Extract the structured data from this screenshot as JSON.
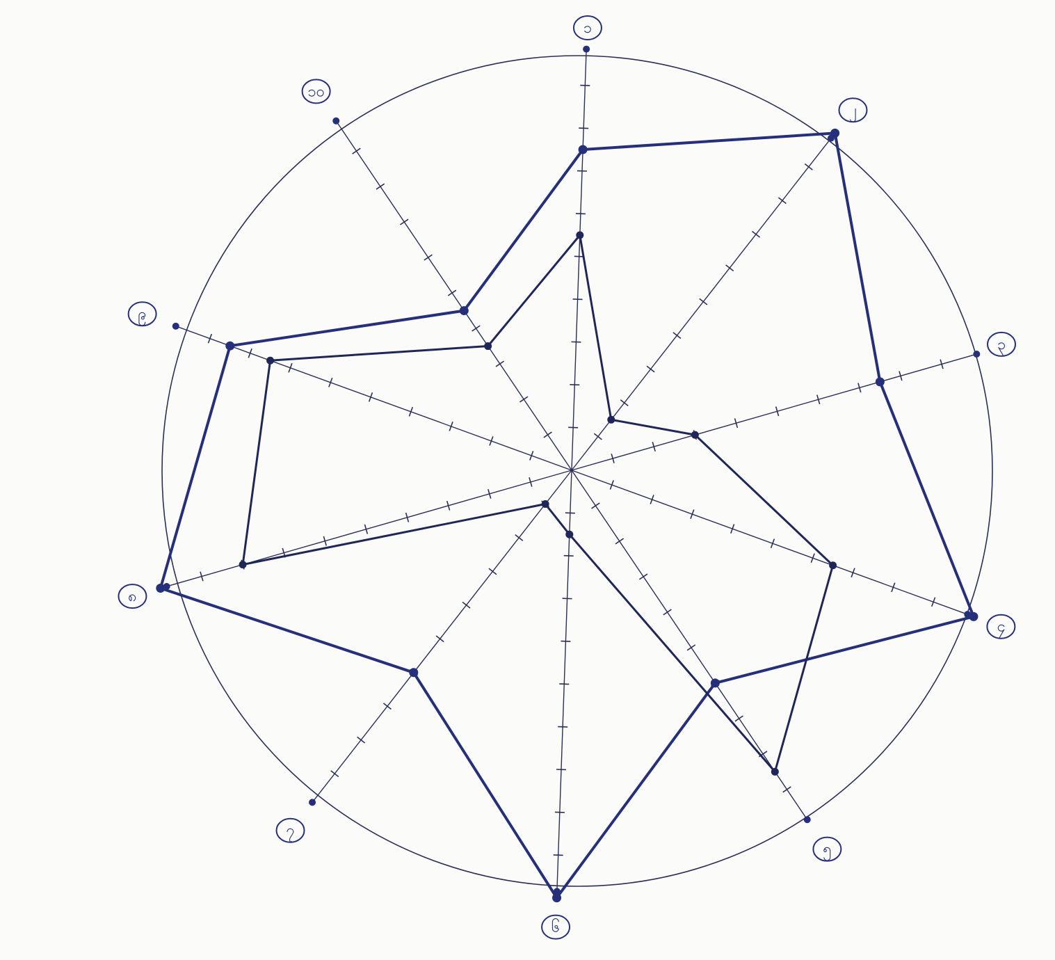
{
  "chart_data": {
    "type": "radar",
    "title": "",
    "scale": {
      "min": 0,
      "max": 10,
      "ticks_per_axis": 10
    },
    "axes": [
      {
        "number": "၁",
        "label": ""
      },
      {
        "number": "၂",
        "label": ""
      },
      {
        "number": "၃",
        "label": ""
      },
      {
        "number": "၄",
        "label": ""
      },
      {
        "number": "၅",
        "label": ""
      },
      {
        "number": "၆",
        "label": ""
      },
      {
        "number": "၇",
        "label": ""
      },
      {
        "number": "၈",
        "label": ""
      },
      {
        "number": "၉",
        "label": ""
      },
      {
        "number": "၁၀",
        "label": ""
      }
    ],
    "series": [
      {
        "values": [
          7.5,
          10,
          7.5,
          10,
          6,
          10,
          6,
          10,
          8.5,
          4.5
        ]
      },
      {
        "values": [
          5.5,
          1.5,
          3.0,
          6.5,
          8.5,
          1.5,
          1.0,
          8.0,
          7.5,
          3.5
        ]
      }
    ],
    "colors": {
      "ink": "#26307a",
      "ink_dark": "#1f2758",
      "paper": "#fbfbfa"
    }
  }
}
